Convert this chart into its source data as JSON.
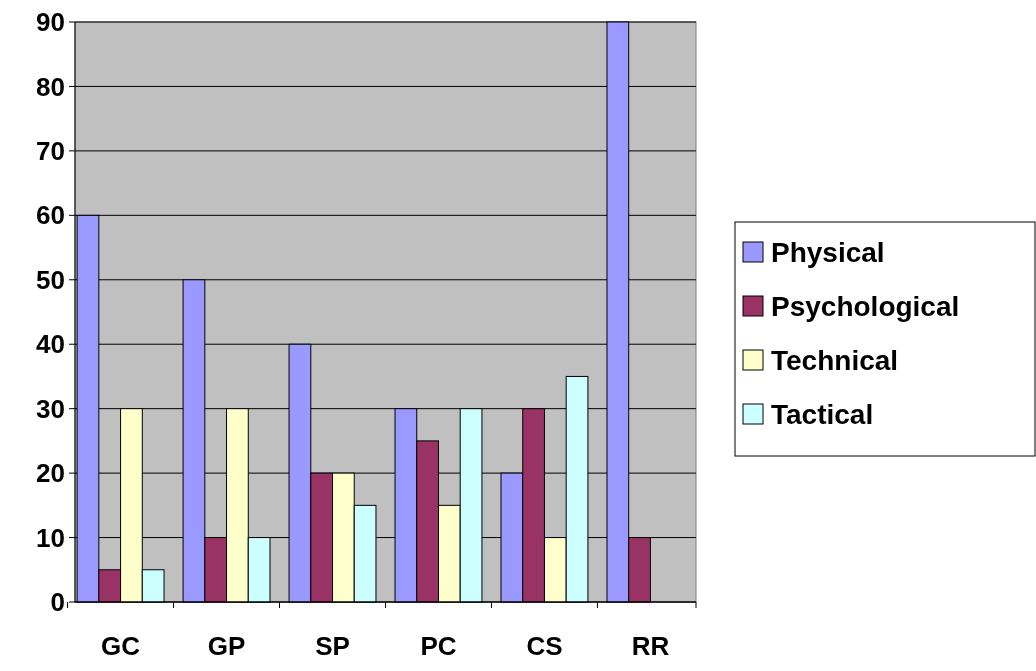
{
  "chart_data": {
    "type": "bar",
    "categories": [
      "GC",
      "GP",
      "SP",
      "PC",
      "CS",
      "RR"
    ],
    "series": [
      {
        "name": "Physical",
        "color": "#9999ff",
        "values": [
          60,
          50,
          40,
          30,
          20,
          90
        ]
      },
      {
        "name": "Psychological",
        "color": "#993366",
        "values": [
          5,
          10,
          20,
          25,
          30,
          10
        ]
      },
      {
        "name": "Technical",
        "color": "#ffffcc",
        "values": [
          30,
          30,
          20,
          15,
          10,
          0
        ]
      },
      {
        "name": "Tactical",
        "color": "#ccffff",
        "values": [
          5,
          10,
          15,
          30,
          35,
          0
        ]
      }
    ],
    "ylim": [
      0,
      90
    ],
    "yticks": [
      0,
      10,
      20,
      30,
      40,
      50,
      60,
      70,
      80,
      90
    ],
    "grid": "y",
    "legend": "right"
  }
}
